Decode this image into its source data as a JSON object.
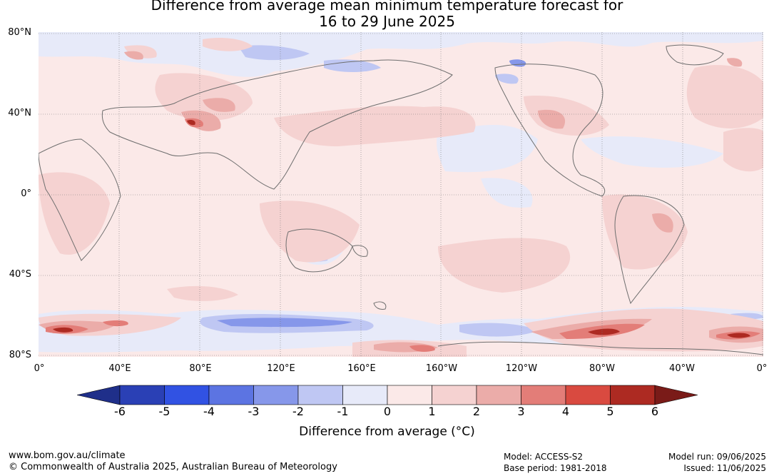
{
  "title": {
    "line1": "Difference from average mean minimum temperature forecast for",
    "line2": "16 to 29 June 2025"
  },
  "map": {
    "lat_labels": [
      "80°N",
      "40°N",
      "0°",
      "40°S",
      "80°S"
    ],
    "lon_labels": [
      "0°",
      "40°E",
      "80°E",
      "120°E",
      "160°E",
      "160°W",
      "120°W",
      "80°W",
      "40°W",
      "0°"
    ],
    "land_outline_color": "#6e6e6e",
    "grid_color": "#777777"
  },
  "colorbar": {
    "title": "Difference from average (°C)",
    "tick_labels": [
      "-6",
      "-5",
      "-4",
      "-3",
      "-2",
      "-1",
      "0",
      "1",
      "2",
      "3",
      "4",
      "5",
      "6"
    ],
    "colors": [
      "#1f2f8a",
      "#2a40b5",
      "#3152e3",
      "#5c74e2",
      "#8697ea",
      "#bfc7f3",
      "#e7eaf9",
      "#fbe9e8",
      "#f5d2d1",
      "#ebaca9",
      "#e37d78",
      "#d94a40",
      "#ad2a22",
      "#7a1b18"
    ]
  },
  "footer": {
    "website": "www.bom.gov.au/climate",
    "copyright": "© Commonwealth of Australia 2025, Australian Bureau of Meteorology",
    "model": "Model: ACCESS-S2",
    "base_period": "Base period: 1981-2018",
    "model_run": "Model run: 09/06/2025",
    "issued": "Issued: 11/06/2025"
  }
}
